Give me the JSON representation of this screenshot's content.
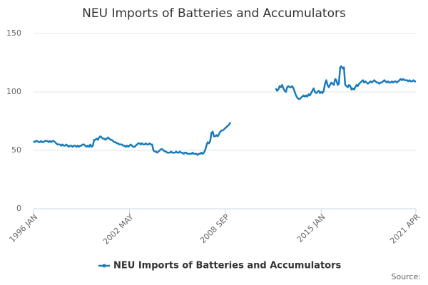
{
  "chart_data": {
    "type": "line",
    "title": "NEU Imports of Batteries and Accumulators",
    "source": "Source:",
    "categories": [
      "1996 JAN",
      null,
      null,
      null,
      null,
      null,
      null,
      null,
      null,
      null,
      null,
      null,
      null,
      null,
      null,
      null,
      null,
      null,
      null,
      null,
      null,
      null,
      null,
      null,
      null,
      null,
      null,
      null,
      null,
      null,
      null,
      null,
      null,
      null,
      null,
      null,
      null,
      null,
      null,
      null,
      null,
      null,
      null,
      null,
      null,
      null,
      null,
      null,
      null,
      null,
      null,
      null,
      null,
      null,
      null,
      null,
      null,
      null,
      null,
      null,
      null,
      null,
      null,
      null,
      null,
      null,
      null,
      null,
      null,
      null,
      null,
      null,
      null,
      null,
      null,
      null,
      "2002 MAY",
      null,
      null,
      null,
      null,
      null,
      null,
      null,
      null,
      null,
      null,
      null,
      null,
      null,
      null,
      null,
      null,
      null,
      null,
      null,
      null,
      null,
      null,
      null,
      null,
      null,
      null,
      null,
      null,
      null,
      null,
      null,
      null,
      null,
      null,
      null,
      null,
      null,
      null,
      null,
      null,
      null,
      null,
      null,
      null,
      null,
      null,
      null,
      null,
      null,
      null,
      null,
      null,
      null,
      null,
      null,
      null,
      null,
      null,
      null,
      null,
      null,
      null,
      null,
      null,
      null,
      null,
      null,
      null,
      null,
      null,
      null,
      null,
      null,
      null,
      null,
      "2008 SEP",
      null,
      null,
      null,
      null,
      null,
      null,
      null,
      null,
      null,
      null,
      null,
      null,
      null,
      null,
      null,
      null,
      null,
      null,
      null,
      null,
      null,
      null,
      null,
      null,
      null,
      null,
      null,
      null,
      null,
      null,
      null,
      null,
      null,
      null,
      null,
      null,
      null,
      null,
      null,
      null,
      null,
      null,
      null,
      null,
      null,
      null,
      null,
      null,
      null,
      null,
      null,
      null,
      null,
      null,
      null,
      null,
      null,
      null,
      null,
      null,
      null,
      null,
      null,
      null,
      null,
      null,
      null,
      null,
      null,
      null,
      null,
      null,
      null,
      null,
      null,
      "2015 JAN",
      null,
      null,
      null,
      null,
      null,
      null,
      null,
      null,
      null,
      null,
      null,
      null,
      null,
      null,
      null,
      null,
      null,
      null,
      null,
      null,
      null,
      null,
      null,
      null,
      null,
      null,
      null,
      null,
      null,
      null,
      null,
      null,
      null,
      null,
      null,
      null,
      null,
      null,
      null,
      null,
      null,
      null,
      null,
      null,
      null,
      null,
      null,
      null,
      null,
      null,
      null,
      null,
      null,
      null,
      null,
      null,
      null,
      null,
      null,
      null,
      null,
      null,
      null,
      null,
      null,
      null,
      null,
      null,
      null,
      null,
      null,
      null,
      null,
      null,
      "2021 APR"
    ],
    "series": [
      {
        "name": "NEU Imports of Batteries and Accumulators",
        "color": "#1a7bb9",
        "values": [
          58,
          57,
          58,
          58,
          57,
          57,
          58,
          57,
          57,
          58,
          58,
          58,
          57,
          58,
          57,
          58,
          58,
          57,
          56,
          55,
          55,
          55,
          54,
          55,
          54,
          54,
          55,
          54,
          53,
          54,
          54,
          53,
          54,
          54,
          53,
          54,
          53,
          54,
          54,
          55,
          55,
          54,
          53,
          54,
          53,
          55,
          53,
          54,
          59,
          59,
          60,
          59,
          61,
          62,
          61,
          60,
          60,
          59,
          60,
          61,
          60,
          59,
          59,
          58,
          57,
          57,
          56,
          56,
          55,
          55,
          55,
          54,
          54,
          53,
          54,
          53,
          54,
          55,
          54,
          53,
          53,
          54,
          55,
          56,
          56,
          55,
          56,
          55,
          55,
          56,
          55,
          55,
          56,
          55,
          55,
          50,
          49,
          49,
          48,
          49,
          50,
          51,
          51,
          50,
          49,
          49,
          48,
          48,
          48,
          49,
          48,
          48,
          48,
          49,
          48,
          48,
          49,
          48,
          48,
          47,
          48,
          48,
          47,
          47,
          47,
          47,
          48,
          47,
          47,
          47,
          46,
          47,
          47,
          48,
          47,
          48,
          50,
          54,
          57,
          56,
          58,
          65,
          66,
          62,
          62,
          63,
          62,
          64,
          66,
          67,
          67,
          68,
          69,
          70,
          71,
          72,
          74,
          null,
          null,
          null,
          null,
          null,
          null,
          null,
          null,
          null,
          null,
          null,
          null,
          null,
          null,
          null,
          null,
          null,
          null,
          null,
          null,
          null,
          null,
          null,
          null,
          null,
          null,
          null,
          null,
          null,
          null,
          null,
          null,
          null,
          null,
          null,
          103,
          101,
          102,
          105,
          104,
          106,
          103,
          101,
          100,
          104,
          105,
          104,
          104,
          105,
          103,
          100,
          97,
          95,
          94,
          94,
          95,
          96,
          97,
          96,
          97,
          96,
          98,
          97,
          99,
          101,
          103,
          100,
          99,
          100,
          101,
          99,
          100,
          99,
          101,
          107,
          110,
          106,
          104,
          106,
          108,
          107,
          106,
          111,
          110,
          106,
          107,
          121,
          122,
          120,
          121,
          106,
          105,
          104,
          106,
          105,
          102,
          103,
          102,
          104,
          106,
          105,
          107,
          108,
          109,
          110,
          108,
          109,
          108,
          107,
          108,
          109,
          108,
          109,
          110,
          109,
          108,
          108,
          107,
          108,
          108,
          109,
          110,
          109,
          108,
          109,
          108,
          108,
          109,
          108,
          109,
          109,
          108,
          109,
          110,
          111,
          110,
          111,
          110,
          110,
          110,
          109,
          110,
          109,
          109,
          110,
          109,
          109
        ]
      }
    ],
    "ylim": [
      0,
      150
    ],
    "yticks": [
      0,
      50,
      100,
      150
    ],
    "grid": true,
    "legend": "bottom"
  }
}
